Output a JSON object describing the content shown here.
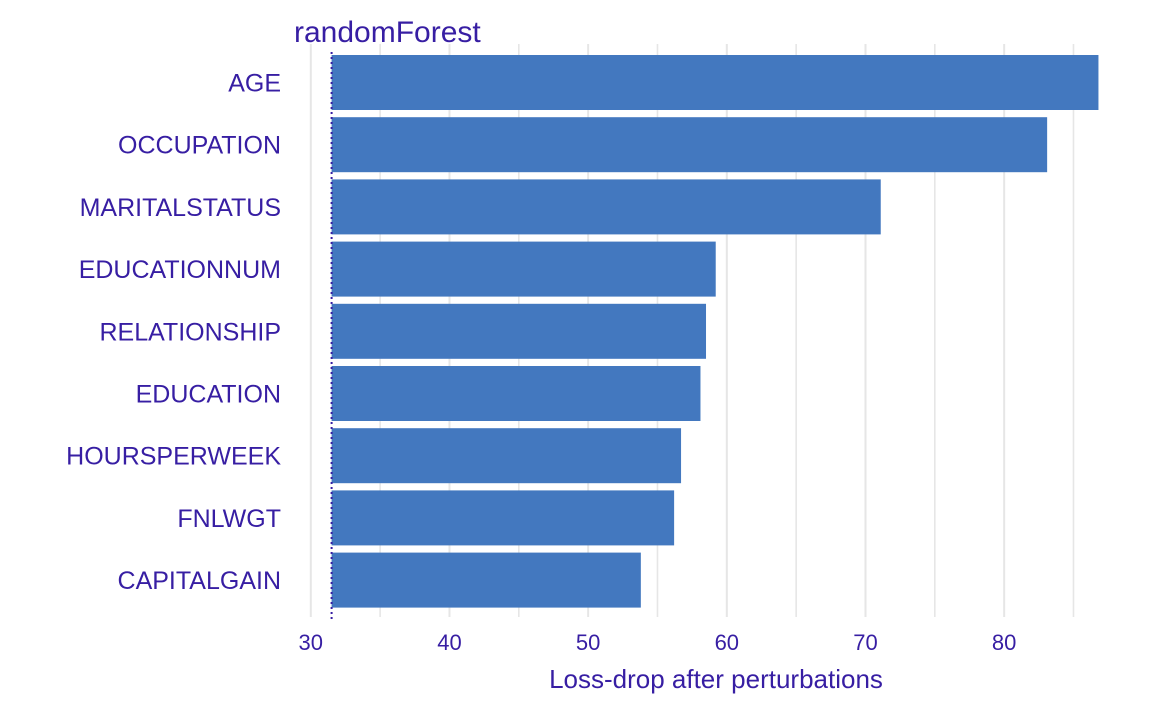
{
  "chart_data": {
    "type": "bar",
    "orientation": "horizontal",
    "title": "randomForest",
    "xlabel": "Loss-drop after perturbations",
    "ylabel": "",
    "categories": [
      "AGE",
      "OCCUPATION",
      "MARITALSTATUS",
      "EDUCATIONNUM",
      "RELATIONSHIP",
      "EDUCATION",
      "HOURSPERWEEK",
      "FNLWGT",
      "CAPITALGAIN"
    ],
    "values": [
      86.8,
      83.1,
      71.1,
      59.2,
      58.5,
      58.1,
      56.7,
      56.2,
      53.8
    ],
    "baseline": 31.5,
    "xlim": [
      28.5,
      87.2
    ],
    "xticks": [
      30,
      40,
      50,
      60,
      70,
      80
    ],
    "grid": true,
    "legend": "none",
    "bar_color": "#4378bf",
    "text_color": "#371ea3",
    "grid_color": "#e6e6e6"
  }
}
